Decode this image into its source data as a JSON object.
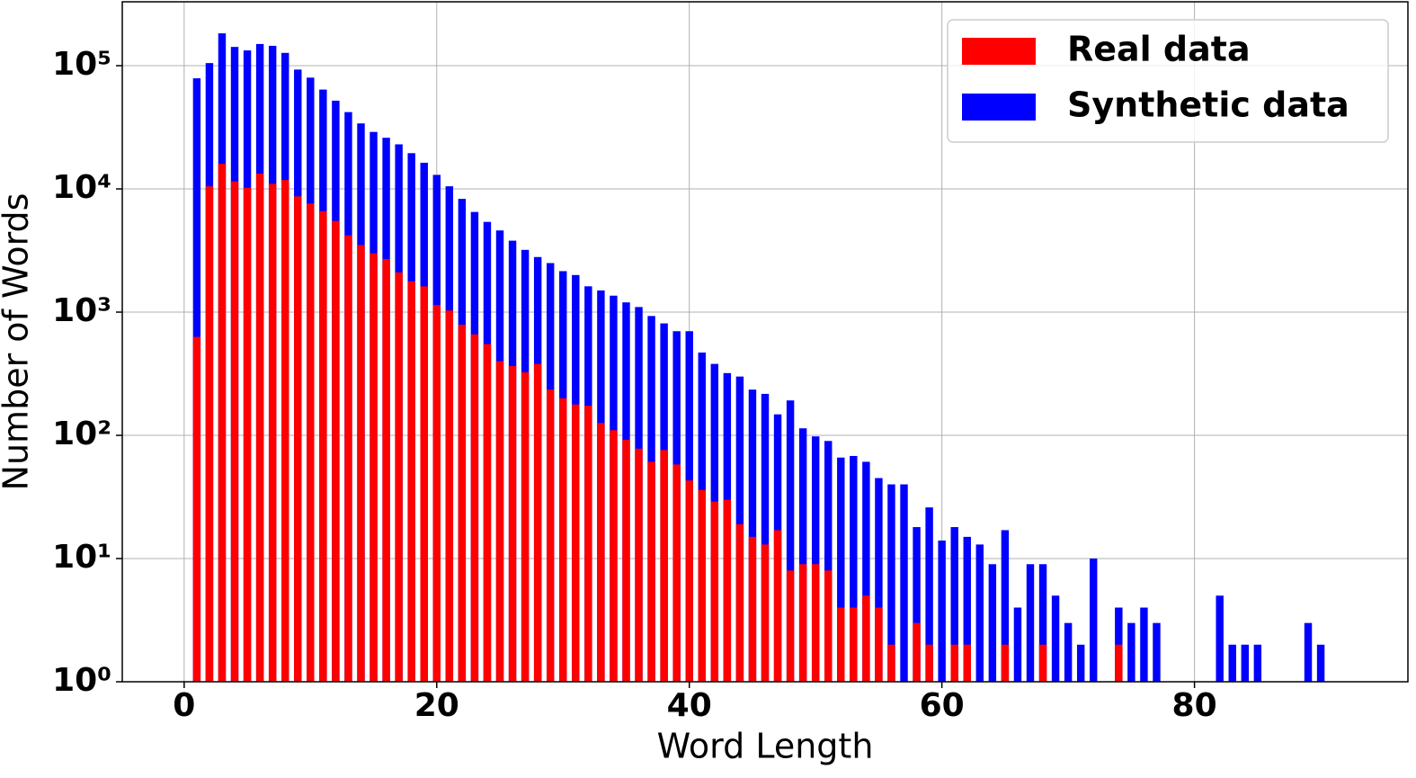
{
  "chart_data": {
    "type": "bar",
    "xlabel": "Word Length",
    "ylabel": "Number of Words",
    "yscale": "log",
    "grid": true,
    "legend": "upper right",
    "x": [
      1,
      2,
      3,
      4,
      5,
      6,
      7,
      8,
      9,
      10,
      11,
      12,
      13,
      14,
      15,
      16,
      17,
      18,
      19,
      20,
      21,
      22,
      23,
      24,
      25,
      26,
      27,
      28,
      29,
      30,
      31,
      32,
      33,
      34,
      35,
      36,
      37,
      38,
      39,
      40,
      41,
      42,
      43,
      44,
      45,
      46,
      47,
      48,
      49,
      50,
      51,
      52,
      53,
      54,
      55,
      56,
      57,
      58,
      59,
      60,
      61,
      62,
      63,
      64,
      65,
      66,
      67,
      68,
      69,
      70,
      71,
      72,
      73,
      74,
      75,
      76,
      77,
      78,
      79,
      80,
      81,
      82,
      83,
      84,
      85,
      86,
      87,
      88,
      89,
      90
    ],
    "series": [
      {
        "name": "Real data",
        "color": "#ff0000",
        "values": [
          630,
          10500,
          16000,
          11500,
          10200,
          13300,
          11000,
          11800,
          8700,
          7600,
          6600,
          5500,
          4200,
          3500,
          3000,
          2700,
          2100,
          1780,
          1620,
          1140,
          1030,
          790,
          660,
          550,
          400,
          365,
          325,
          380,
          235,
          200,
          178,
          174,
          126,
          110,
          92,
          78,
          61,
          76,
          58,
          43,
          36,
          29,
          30,
          19,
          15,
          13,
          17,
          8,
          9,
          9,
          8,
          4,
          4,
          5,
          4,
          2,
          null,
          3,
          2,
          null,
          2,
          2,
          null,
          null,
          2,
          null,
          null,
          2,
          null,
          null,
          null,
          null,
          null,
          2,
          null,
          null,
          null,
          null,
          null,
          null,
          null,
          null,
          null,
          null,
          null,
          null,
          null,
          null,
          null,
          null
        ]
      },
      {
        "name": "Synthetic data",
        "color": "#0000ff",
        "values": [
          79000,
          105000,
          183000,
          142000,
          133000,
          150000,
          145000,
          127000,
          93000,
          80000,
          64000,
          52000,
          42000,
          34000,
          29000,
          26000,
          23000,
          19500,
          16300,
          13000,
          10500,
          8300,
          6500,
          5400,
          4600,
          3800,
          3200,
          2800,
          2500,
          2150,
          2000,
          1620,
          1500,
          1360,
          1200,
          1100,
          930,
          810,
          700,
          700,
          470,
          380,
          320,
          300,
          235,
          217,
          148,
          192,
          114,
          98,
          90,
          66,
          68,
          61,
          45,
          40,
          40,
          18,
          26,
          14,
          18,
          15,
          13,
          9,
          17,
          4,
          9,
          9,
          5,
          3,
          2,
          10,
          null,
          4,
          3,
          4,
          3,
          null,
          null,
          null,
          null,
          5,
          2,
          2,
          2,
          null,
          null,
          null,
          3,
          2
        ]
      }
    ],
    "xlim": [
      -4.9,
      96.9
    ],
    "xticks": [
      0,
      20,
      40,
      60,
      80
    ],
    "ylim": [
      1,
      330000
    ],
    "yticks": [
      {
        "value": 1,
        "label": "10⁰"
      },
      {
        "value": 10,
        "label": "10¹"
      },
      {
        "value": 100,
        "label": "10²"
      },
      {
        "value": 1000,
        "label": "10³"
      },
      {
        "value": 10000,
        "label": "10⁴"
      },
      {
        "value": 100000,
        "label": "10⁵"
      }
    ]
  }
}
